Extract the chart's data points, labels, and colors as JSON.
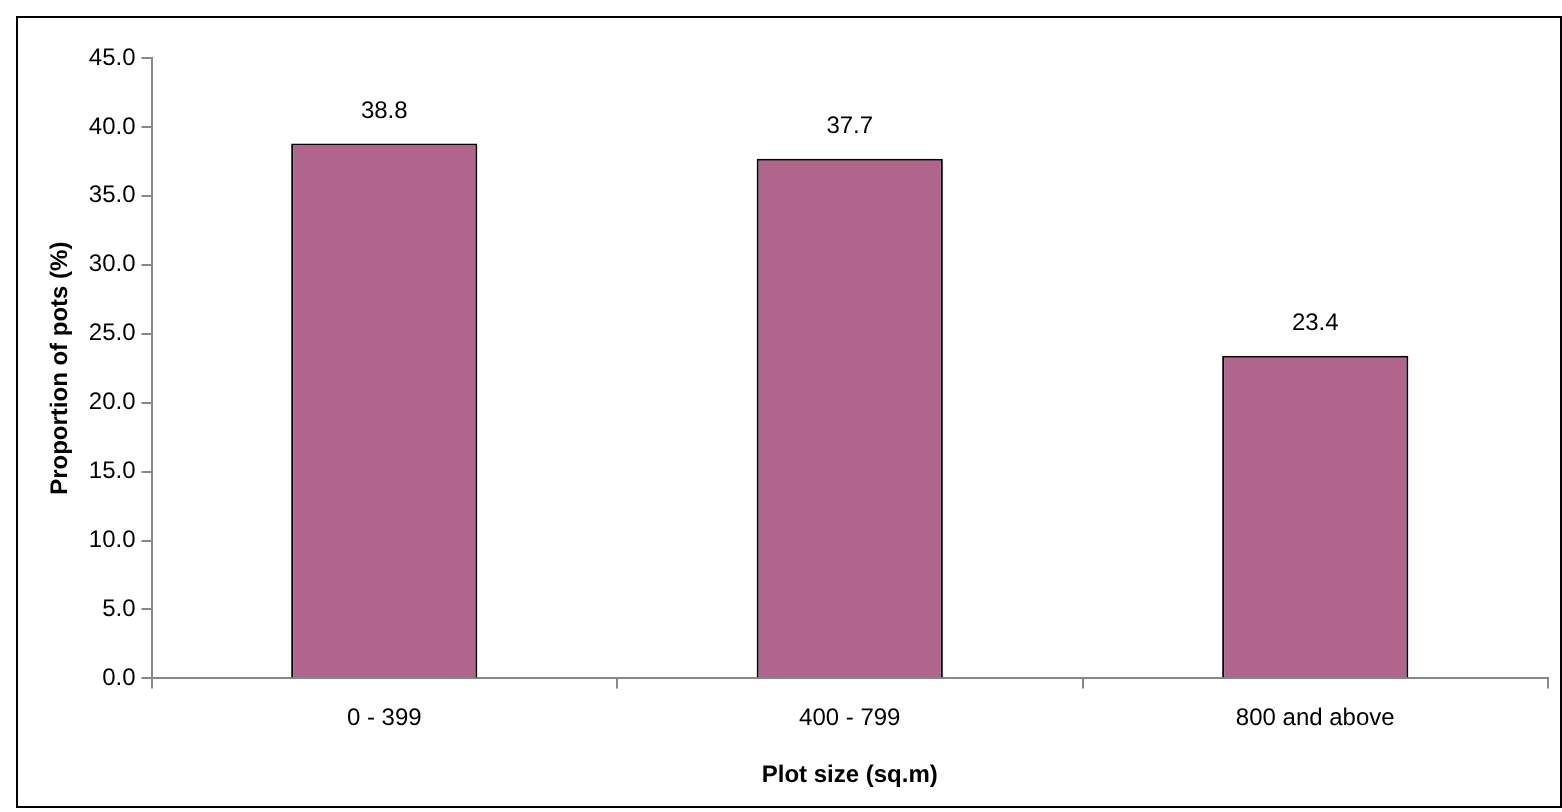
{
  "chart_data": {
    "type": "bar",
    "xlabel": "Plot size (sq.m)",
    "ylabel": "Proportion of pots (%)",
    "categories": [
      "0 - 399",
      "400 - 799",
      "800 and above"
    ],
    "values": [
      38.8,
      37.7,
      23.4
    ],
    "color": "#b0658d",
    "ylim": [
      0,
      45
    ],
    "yticks": [
      {
        "value": 0,
        "label": "0.0"
      },
      {
        "value": 5,
        "label": "5.0"
      },
      {
        "value": 10,
        "label": "10.0"
      },
      {
        "value": 15,
        "label": "15.0"
      },
      {
        "value": 20,
        "label": "20.0"
      },
      {
        "value": 25,
        "label": "25.0"
      },
      {
        "value": 30,
        "label": "30.0"
      },
      {
        "value": 35,
        "label": "35.0"
      },
      {
        "value": 40,
        "label": "40.0"
      },
      {
        "value": 45,
        "label": "45.0"
      }
    ],
    "grid": false,
    "legend": false,
    "data_labels": true
  }
}
